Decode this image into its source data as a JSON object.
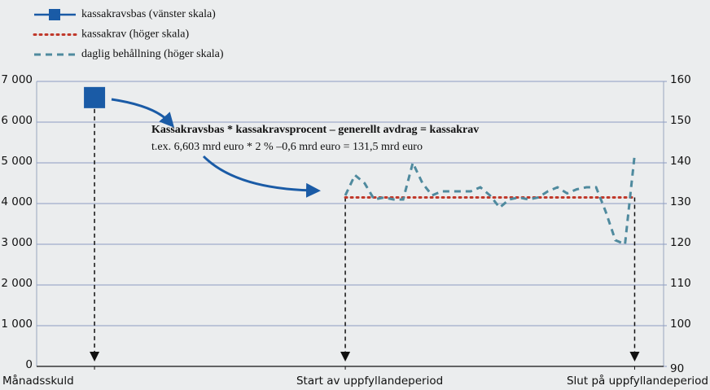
{
  "chart_data": {
    "type": "line",
    "xlim": [
      -32,
      33
    ],
    "xticks": [
      {
        "value": -26,
        "label": "Månadsskuld"
      },
      {
        "value": 0,
        "label": "Start av uppfyllandeperiod"
      },
      {
        "value": 30,
        "label": "Slut på uppfyllandeperiod"
      }
    ],
    "ylim": [
      0,
      7000
    ],
    "yticks": [
      {
        "value": 0,
        "label": "0"
      },
      {
        "value": 1000,
        "label": "1 000"
      },
      {
        "value": 2000,
        "label": "2 000"
      },
      {
        "value": 3000,
        "label": "3 000"
      },
      {
        "value": 4000,
        "label": "4 000"
      },
      {
        "value": 5000,
        "label": "5 000"
      },
      {
        "value": 6000,
        "label": "6 000"
      },
      {
        "value": 7000,
        "label": "7 000"
      }
    ],
    "y2lim": [
      90,
      160
    ],
    "y2ticks": [
      90,
      100,
      110,
      120,
      130,
      140,
      150,
      160
    ],
    "grid": true,
    "legend": "top-left",
    "annotations": [
      {
        "text": "Kassakravsbas * kassakravsprocent – generellt avdrag = kassakrav"
      },
      {
        "text": "t.ex. 6,603 mrd euro * 2 % –0,6 mrd euro = 131,5 mrd euro"
      }
    ],
    "series": [
      {
        "name": "kassakravsbas (vänster skala)",
        "color": "#1a5ba6",
        "axis": "y",
        "style": "square",
        "x": [
          -26
        ],
        "values": [
          6603
        ]
      },
      {
        "name": "kassakrav (höger skala)",
        "color": "#c0392b",
        "axis": "y2",
        "style": "dotted",
        "x": [
          0,
          30
        ],
        "values": [
          131.5,
          131.5
        ]
      },
      {
        "name": "daglig behållning (höger skala)",
        "color": "#4f8a9e",
        "axis": "y2",
        "style": "dashed",
        "x": [
          0,
          1,
          2,
          3,
          4,
          5,
          6,
          7,
          8,
          9,
          10,
          11,
          12,
          13,
          14,
          15,
          16,
          17,
          18,
          19,
          20,
          21,
          22,
          23,
          24,
          25,
          26,
          27,
          28,
          29,
          30
        ],
        "values": [
          132,
          137,
          135,
          131,
          131.5,
          131,
          131,
          140,
          135,
          132,
          133,
          133,
          133,
          133,
          134,
          132,
          129,
          131,
          131.5,
          131,
          131.5,
          133,
          134,
          132.5,
          133.5,
          134,
          134,
          128,
          121,
          120,
          142
        ]
      }
    ]
  }
}
